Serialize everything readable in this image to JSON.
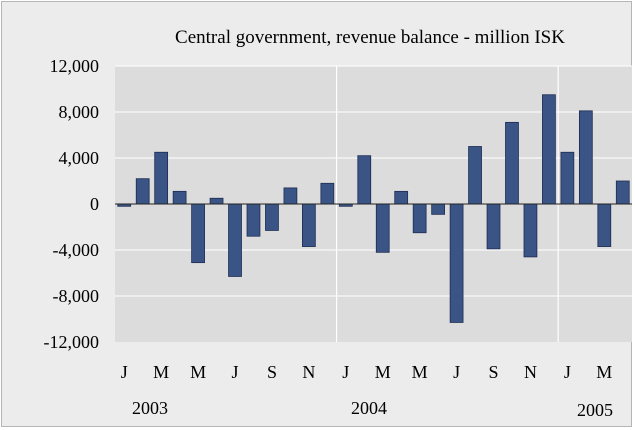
{
  "chart_data": {
    "type": "bar",
    "title": "Central government, revenue balance - million ISK",
    "xlabel": "",
    "ylabel": "",
    "ylim": [
      -12000,
      12000
    ],
    "yticks": [
      "12,000",
      "8,000",
      "4,000",
      "0",
      "-4,000",
      "-8,000",
      "-12,000"
    ],
    "ytick_values": [
      12000,
      8000,
      4000,
      0,
      -4000,
      -8000,
      -12000
    ],
    "grid": true,
    "categories": [
      "Jan 2003",
      "Feb 2003",
      "Mar 2003",
      "Apr 2003",
      "May 2003",
      "Jun 2003",
      "Jul 2003",
      "Aug 2003",
      "Sep 2003",
      "Oct 2003",
      "Nov 2003",
      "Dec 2003",
      "Jan 2004",
      "Feb 2004",
      "Mar 2004",
      "Apr 2004",
      "May 2004",
      "Jun 2004",
      "Jul 2004",
      "Aug 2004",
      "Sep 2004",
      "Oct 2004",
      "Nov 2004",
      "Dec 2004",
      "Jan 2005",
      "Feb 2005",
      "Mar 2005",
      "Apr 2005"
    ],
    "values": [
      -200,
      2200,
      4500,
      1100,
      -5100,
      500,
      -6300,
      -2800,
      -2300,
      1400,
      -3700,
      1800,
      -200,
      4200,
      -4200,
      1100,
      -2500,
      -900,
      -10300,
      5000,
      -3900,
      7100,
      -4600,
      9500,
      4500,
      8100,
      -3700,
      2000
    ],
    "x_tick_labels": [
      "J",
      "M",
      "M",
      "J",
      "S",
      "N",
      "J",
      "M",
      "M",
      "J",
      "S",
      "N",
      "J",
      "M"
    ],
    "year_labels": [
      "2003",
      "2004",
      "2005"
    ],
    "bar_color": "#3b5486",
    "plot_background": "#dcdcdc",
    "gridline_color": "#ffffff"
  }
}
